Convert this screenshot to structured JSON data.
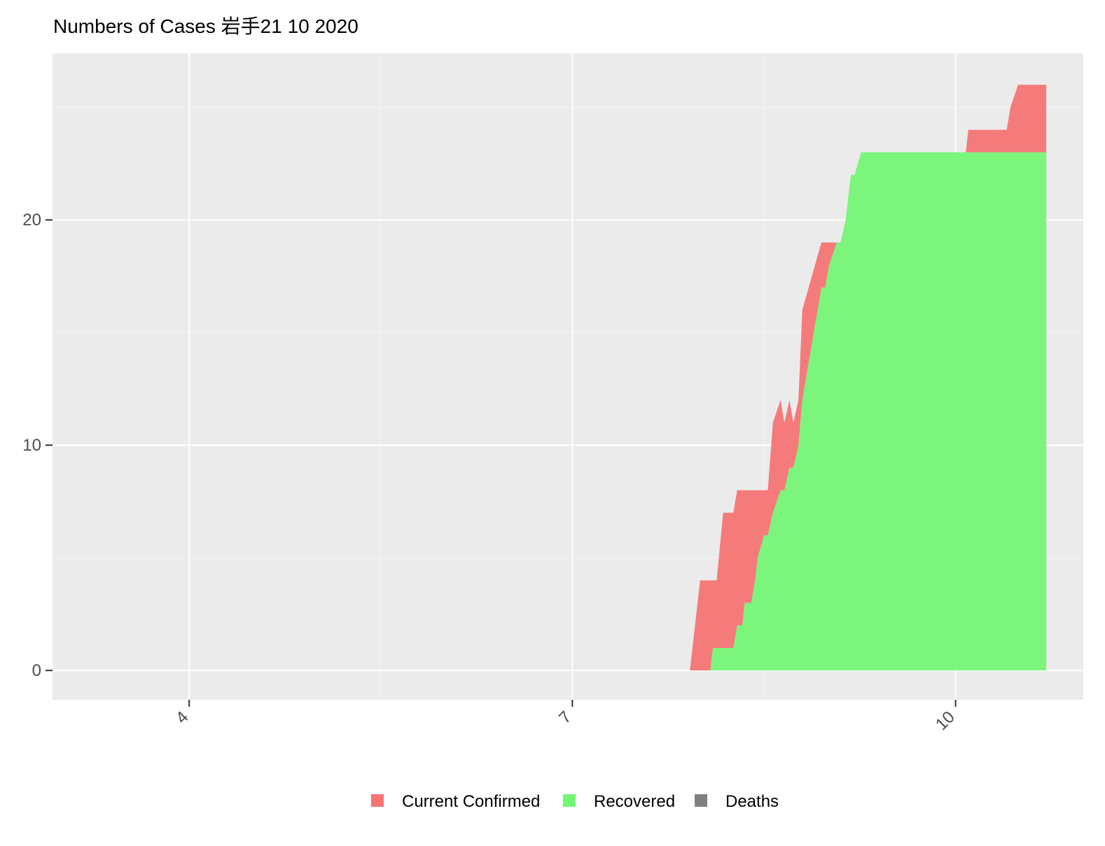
{
  "chart_data": {
    "type": "area",
    "title": "Numbers of Cases 岩手21 10 2020",
    "xlabel": "",
    "ylabel": "",
    "x_ticks": [
      {
        "value": 4,
        "label": "4"
      },
      {
        "value": 7,
        "label": "7"
      },
      {
        "value": 10,
        "label": "10"
      }
    ],
    "y_ticks": [
      {
        "value": 0,
        "label": "0"
      },
      {
        "value": 10,
        "label": "10"
      },
      {
        "value": 20,
        "label": "20"
      }
    ],
    "xlim": [
      2.93,
      11.0
    ],
    "ylim": [
      -1.3,
      27.4
    ],
    "grid": true,
    "stacked": true,
    "legend_position": "bottom",
    "series": [
      {
        "name": "Deaths",
        "color": "#808080",
        "x": [
          7.92,
          11.66
        ],
        "values": [
          0,
          0
        ]
      },
      {
        "name": "Recovered",
        "color": "#75f575",
        "x": [
          8.08,
          8.1,
          8.13,
          8.26,
          8.29,
          8.33,
          8.35,
          8.4,
          8.43,
          8.45,
          8.5,
          8.53,
          8.57,
          8.63,
          8.66,
          8.7,
          8.73,
          8.77,
          8.8,
          8.95,
          8.98,
          9.01,
          9.07,
          9.1,
          9.14,
          9.18,
          9.21,
          9.26,
          9.3,
          9.32,
          9.36,
          10.71
        ],
        "values": [
          0,
          1,
          1,
          1,
          2,
          2,
          3,
          3,
          4,
          5,
          6,
          6,
          7,
          8,
          8,
          9,
          9,
          10,
          12,
          17,
          17,
          18,
          19,
          19,
          20,
          22,
          22,
          23,
          23,
          23,
          23,
          23
        ]
      },
      {
        "name": "Current Confirmed",
        "color": "#f57575",
        "x": [
          7.92,
          7.96,
          8.0,
          8.1,
          8.13,
          8.18,
          8.26,
          8.29,
          8.33,
          8.35,
          8.4,
          8.43,
          8.45,
          8.5,
          8.53,
          8.57,
          8.63,
          8.66,
          8.7,
          8.73,
          8.77,
          8.8,
          8.95,
          8.98,
          9.01,
          9.07,
          9.1,
          9.14,
          9.18,
          9.21,
          9.26,
          9.3,
          9.36,
          10.08,
          10.1,
          10.4,
          10.43,
          10.49,
          10.71
        ],
        "values": [
          0,
          2,
          4,
          3,
          3,
          6,
          6,
          6,
          6,
          5,
          5,
          4,
          3,
          2,
          2,
          4,
          4,
          3,
          3,
          2,
          2,
          4,
          2,
          2,
          1,
          0,
          0,
          0,
          0,
          0,
          0,
          0,
          0,
          0,
          1,
          1,
          2,
          3,
          3
        ]
      }
    ]
  },
  "legend": {
    "items": [
      {
        "label": "Current Confirmed",
        "color": "#f57575"
      },
      {
        "label": "Recovered",
        "color": "#75f575"
      },
      {
        "label": "Deaths",
        "color": "#808080"
      }
    ]
  },
  "colors": {
    "panel_background": "#ebebeb",
    "grid_major": "#ffffff",
    "grid_minor": "#f5f5f5",
    "axis_text": "#4d4d4d"
  }
}
